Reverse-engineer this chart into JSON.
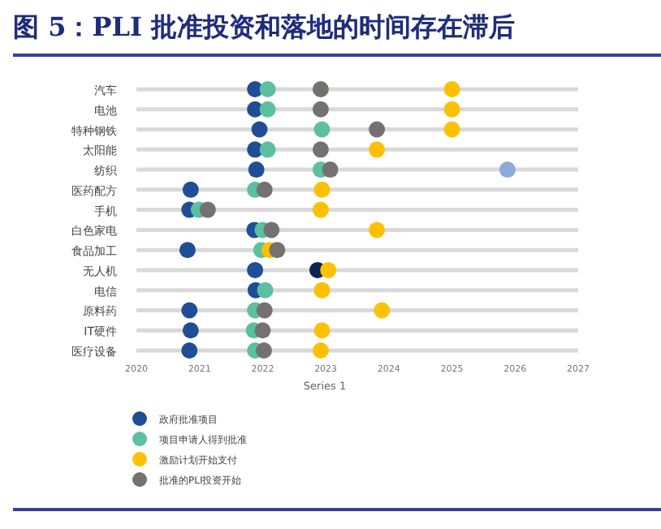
{
  "chart_data": {
    "type": "scatter",
    "orientation": "horizontal",
    "title": "图 5：PLI 批准投资和落地的时间存在滞后",
    "xlabel": "Series 1",
    "categories": [
      "汽车",
      "电池",
      "特种钢铁",
      "太阳能",
      "纺织",
      "医药配方",
      "手机",
      "白色家电",
      "食品加工",
      "无人机",
      "电信",
      "原料药",
      "IT硬件",
      "医疗设备"
    ],
    "xlim": [
      2020,
      2027
    ],
    "xticks": [
      2020,
      2021,
      2022,
      2023,
      2024,
      2025,
      2026,
      2027
    ],
    "grid": "y",
    "legend": "bottom",
    "marker": "circle",
    "series": [
      {
        "name": "政府批准项目",
        "color": "#1f4e96",
        "values": [
          2021.88,
          2021.88,
          2021.95,
          2021.88,
          2021.9,
          2020.86,
          2020.84,
          2021.87,
          2020.81,
          2021.88,
          2021.89,
          2020.84,
          2020.86,
          2020.84
        ]
      },
      {
        "name": "项目申请人得到批准",
        "color": "#5bc0a0",
        "values": [
          2022.08,
          2022.08,
          2022.94,
          2022.08,
          2022.92,
          2021.88,
          2020.99,
          2022.0,
          2021.98,
          2022.87,
          2022.04,
          2021.88,
          2021.86,
          2021.88
        ],
        "colors": [
          "#5bc0a0",
          "#5bc0a0",
          "#5bc0a0",
          "#5bc0a0",
          "#5bc0a0",
          "#5bc0a0",
          "#5bc0a0",
          "#5bc0a0",
          "#5bc0a0",
          "#0d2550",
          "#5bc0a0",
          "#5bc0a0",
          "#5bc0a0",
          "#5bc0a0"
        ]
      },
      {
        "name": "激励计划开始支付",
        "color": "#ffc000",
        "values": [
          2025.0,
          2025.0,
          2025.0,
          2023.81,
          2025.88,
          2022.94,
          2022.92,
          2023.81,
          2022.11,
          2023.04,
          2022.94,
          2023.89,
          2022.94,
          2022.92
        ],
        "colors": [
          "#ffc000",
          "#ffc000",
          "#ffc000",
          "#ffc000",
          "#8eaadb",
          "#ffc000",
          "#ffc000",
          "#ffc000",
          "#ffc000",
          "#ffc000",
          "#ffc000",
          "#ffc000",
          "#ffc000",
          "#ffc000"
        ]
      },
      {
        "name": "批准的PLI投资开始",
        "color": "#767171",
        "values": [
          2022.92,
          2022.92,
          2023.81,
          2022.92,
          2023.07,
          2022.03,
          2021.13,
          2022.14,
          2022.23,
          null,
          null,
          2022.03,
          2022.0,
          2022.02
        ]
      }
    ]
  }
}
